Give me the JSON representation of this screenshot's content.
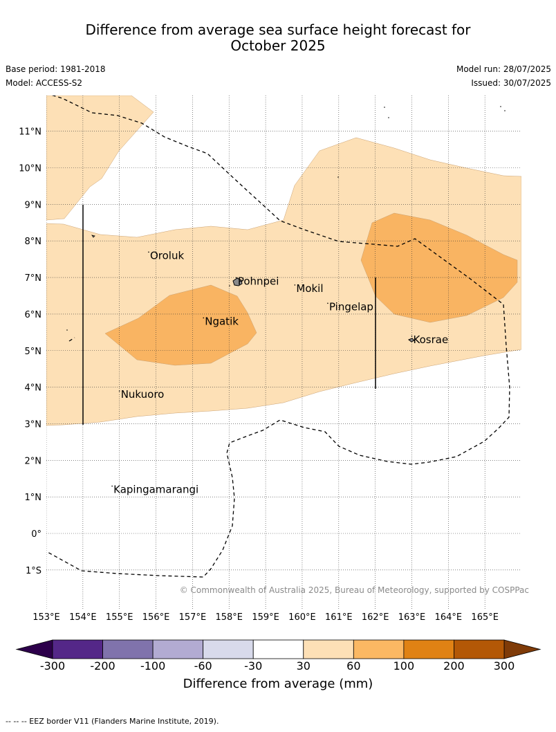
{
  "title": {
    "line1": "Difference from average sea surface height forecast for",
    "line2": "October 2025"
  },
  "meta": {
    "base_period": "Base period: 1981-2018",
    "model": "Model: ACCESS-S2",
    "model_run": "Model run: 28/07/2025",
    "issued": "Issued: 30/07/2025"
  },
  "map": {
    "lon_range": [
      153,
      166
    ],
    "lat_range": [
      -2,
      12
    ],
    "lat_ticks": [
      {
        "label": "11°N",
        "value": 11
      },
      {
        "label": "10°N",
        "value": 10
      },
      {
        "label": "9°N",
        "value": 9
      },
      {
        "label": "8°N",
        "value": 8
      },
      {
        "label": "7°N",
        "value": 7
      },
      {
        "label": "6°N",
        "value": 6
      },
      {
        "label": "5°N",
        "value": 5
      },
      {
        "label": "4°N",
        "value": 4
      },
      {
        "label": "3°N",
        "value": 3
      },
      {
        "label": "2°N",
        "value": 2
      },
      {
        "label": "1°N",
        "value": 1
      },
      {
        "label": "0°",
        "value": 0
      },
      {
        "label": "1°S",
        "value": -1
      }
    ],
    "lon_ticks": [
      {
        "label": "153°E",
        "value": 153
      },
      {
        "label": "154°E",
        "value": 154
      },
      {
        "label": "155°E",
        "value": 155
      },
      {
        "label": "156°E",
        "value": 156
      },
      {
        "label": "157°E",
        "value": 157
      },
      {
        "label": "158°E",
        "value": 158
      },
      {
        "label": "159°E",
        "value": 159
      },
      {
        "label": "160°E",
        "value": 160
      },
      {
        "label": "161°E",
        "value": 161
      },
      {
        "label": "162°E",
        "value": 162
      },
      {
        "label": "163°E",
        "value": 163
      },
      {
        "label": "164°E",
        "value": 164
      },
      {
        "label": "165°E",
        "value": 165
      }
    ],
    "places": [
      {
        "name": "Oroluk",
        "lon": 155.8,
        "lat": 7.6
      },
      {
        "name": "Pohnpei",
        "lon": 158.2,
        "lat": 6.9
      },
      {
        "name": "Mokil",
        "lon": 159.8,
        "lat": 6.7
      },
      {
        "name": "Pingelap",
        "lon": 160.7,
        "lat": 6.2
      },
      {
        "name": "Ngatik",
        "lon": 157.3,
        "lat": 5.8
      },
      {
        "name": "Kosrae",
        "lon": 163.0,
        "lat": 5.3
      },
      {
        "name": "Nukuoro",
        "lon": 155.0,
        "lat": 3.8
      },
      {
        "name": "Kapingamarangi",
        "lon": 154.8,
        "lat": 1.2
      }
    ],
    "colors": {
      "band_30_60": "#fde0b6",
      "band_60_100": "#f9b462",
      "land": "#8a8a8a",
      "grid": "#333333"
    },
    "copyright": "© Commonwealth of Australia 2025, Bureau of Meteorology, supported by COSPPac"
  },
  "colorbar": {
    "title": "Difference from average (mm)",
    "labels": [
      "-300",
      "-200",
      "-100",
      "-60",
      "-30",
      "30",
      "60",
      "100",
      "200",
      "300"
    ],
    "colors": [
      "#542788",
      "#8073ac",
      "#b2abd2",
      "#d8daeb",
      "#ffffff",
      "#fde0b6",
      "#fbb863",
      "#e08214",
      "#b35806"
    ],
    "low_extend_color": "#2d004b",
    "high_extend_color": "#7f3b08"
  },
  "footnote": "--  --  -- EEZ border V11 (Flanders Marine Institute, 2019)."
}
